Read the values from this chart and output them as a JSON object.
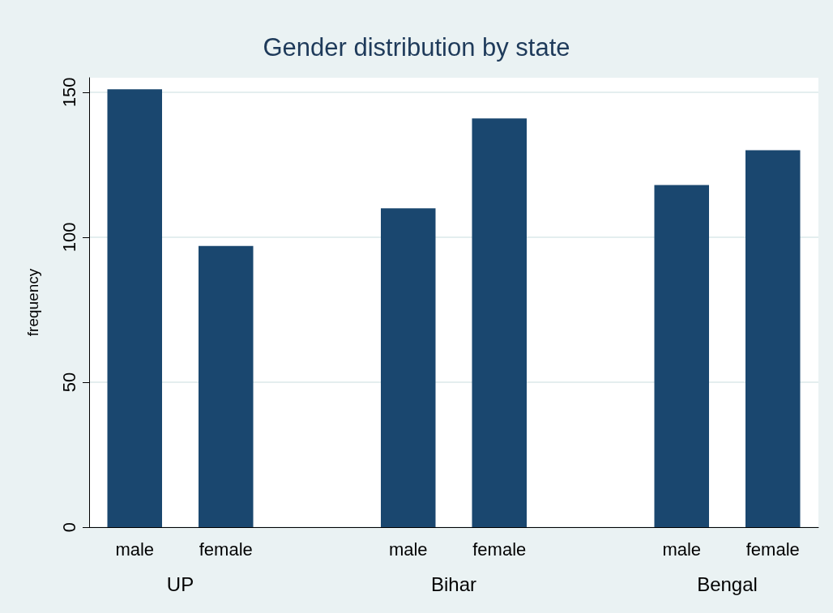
{
  "chart_data": {
    "type": "bar",
    "title": "Gender distribution by state",
    "ylabel": "frequency",
    "categories": [
      "male",
      "female",
      null,
      "male",
      "female",
      null,
      "male",
      "female"
    ],
    "values": [
      151,
      97,
      null,
      110,
      141,
      null,
      118,
      130
    ],
    "color": "#1a476f",
    "annotations": [
      "UP",
      "Bihar",
      "Bengal"
    ],
    "ylim": [
      0,
      155
    ],
    "yticks": [
      0,
      50,
      100,
      150
    ],
    "grid": "y"
  }
}
